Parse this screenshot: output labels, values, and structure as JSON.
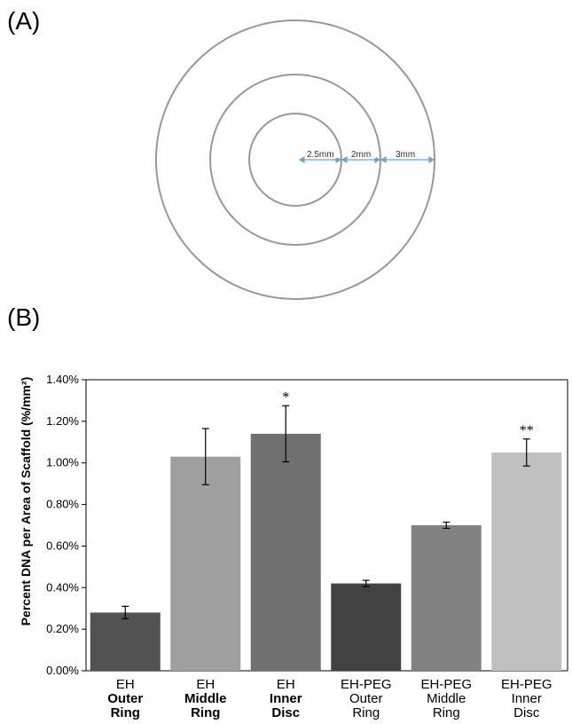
{
  "panel_a": {
    "label": "(A)",
    "dimensions": [
      "2.5mm",
      "2mm",
      "3mm"
    ]
  },
  "panel_b": {
    "label": "(B)"
  },
  "chart_data": {
    "type": "bar",
    "title": "",
    "ylabel": "Percent DNA per Area of Scaffold (%/mm²)",
    "ylim": [
      0,
      1.4
    ],
    "yticks": [
      "0.00%",
      "0.20%",
      "0.40%",
      "0.60%",
      "0.80%",
      "1.00%",
      "1.20%",
      "1.40%"
    ],
    "categories": [
      [
        "EH",
        "Outer",
        "Ring"
      ],
      [
        "EH",
        "Middle",
        "Ring"
      ],
      [
        "EH",
        "Inner",
        "Disc"
      ],
      [
        "EH-PEG",
        "Outer",
        "Ring"
      ],
      [
        "EH-PEG",
        "Middle",
        "Ring"
      ],
      [
        "EH-PEG",
        "Inner",
        "Disc"
      ]
    ],
    "bold_categories": [
      true,
      true,
      true,
      false,
      false,
      false
    ],
    "values": [
      0.28,
      1.03,
      1.14,
      0.42,
      0.7,
      1.05
    ],
    "errors": [
      0.03,
      0.135,
      0.135,
      0.015,
      0.015,
      0.065
    ],
    "annotations": [
      "",
      "",
      "*",
      "",
      "",
      "**"
    ],
    "colors": [
      "#525252",
      "#9f9f9f",
      "#707070",
      "#424242",
      "#828282",
      "#c0c0c0"
    ],
    "grid": false
  }
}
